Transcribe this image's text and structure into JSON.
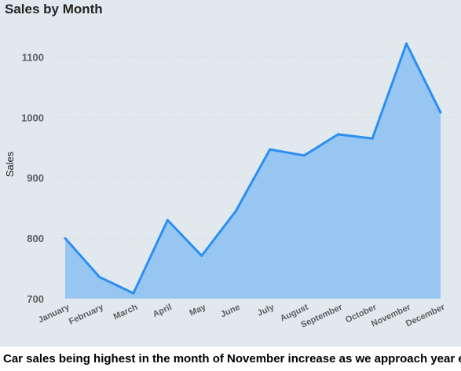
{
  "caption": "Car sales being highest in the month of November increase as we approach year end.",
  "colors": {
    "panel_bg": "#e1e8ee",
    "line": "#2b8ff2",
    "area": "#98c6f2",
    "grid": "#c8cfd6",
    "tick_text": "#605e5c",
    "title_text": "#252423"
  },
  "chart_data": {
    "type": "area",
    "title": "Sales by Month",
    "xlabel": "",
    "ylabel": "Sales",
    "categories": [
      "January",
      "February",
      "March",
      "April",
      "May",
      "June",
      "July",
      "August",
      "September",
      "October",
      "November",
      "December"
    ],
    "values": [
      800,
      736,
      709,
      830,
      771,
      845,
      947,
      937,
      972,
      965,
      1122,
      1008
    ],
    "ylim": [
      700,
      1150
    ],
    "yticks": [
      700,
      800,
      900,
      1000,
      1100
    ],
    "grid": true,
    "gridline_style": "dotted",
    "legend": "none"
  }
}
